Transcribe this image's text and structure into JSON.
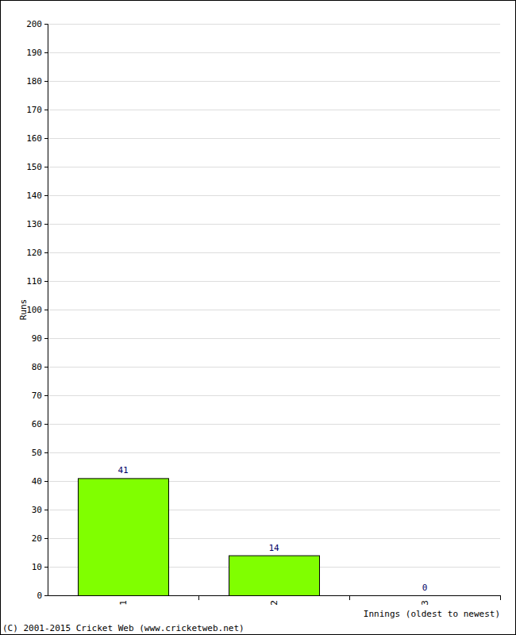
{
  "chart_data": {
    "type": "bar",
    "categories": [
      "1",
      "2",
      "3"
    ],
    "values": [
      41,
      14,
      0
    ],
    "color": "#80ff00",
    "ylim": [
      0,
      200
    ],
    "yticks": [
      0,
      10,
      20,
      30,
      40,
      50,
      60,
      70,
      80,
      90,
      100,
      110,
      120,
      130,
      140,
      150,
      160,
      170,
      180,
      190,
      200
    ],
    "grid": true,
    "data_labels": true,
    "y_label": "Runs",
    "x_label": "Innings (oldest to newest)",
    "annotations": [
      "(C) 2001-2015 Cricket Web (www.cricketweb.net)"
    ]
  }
}
